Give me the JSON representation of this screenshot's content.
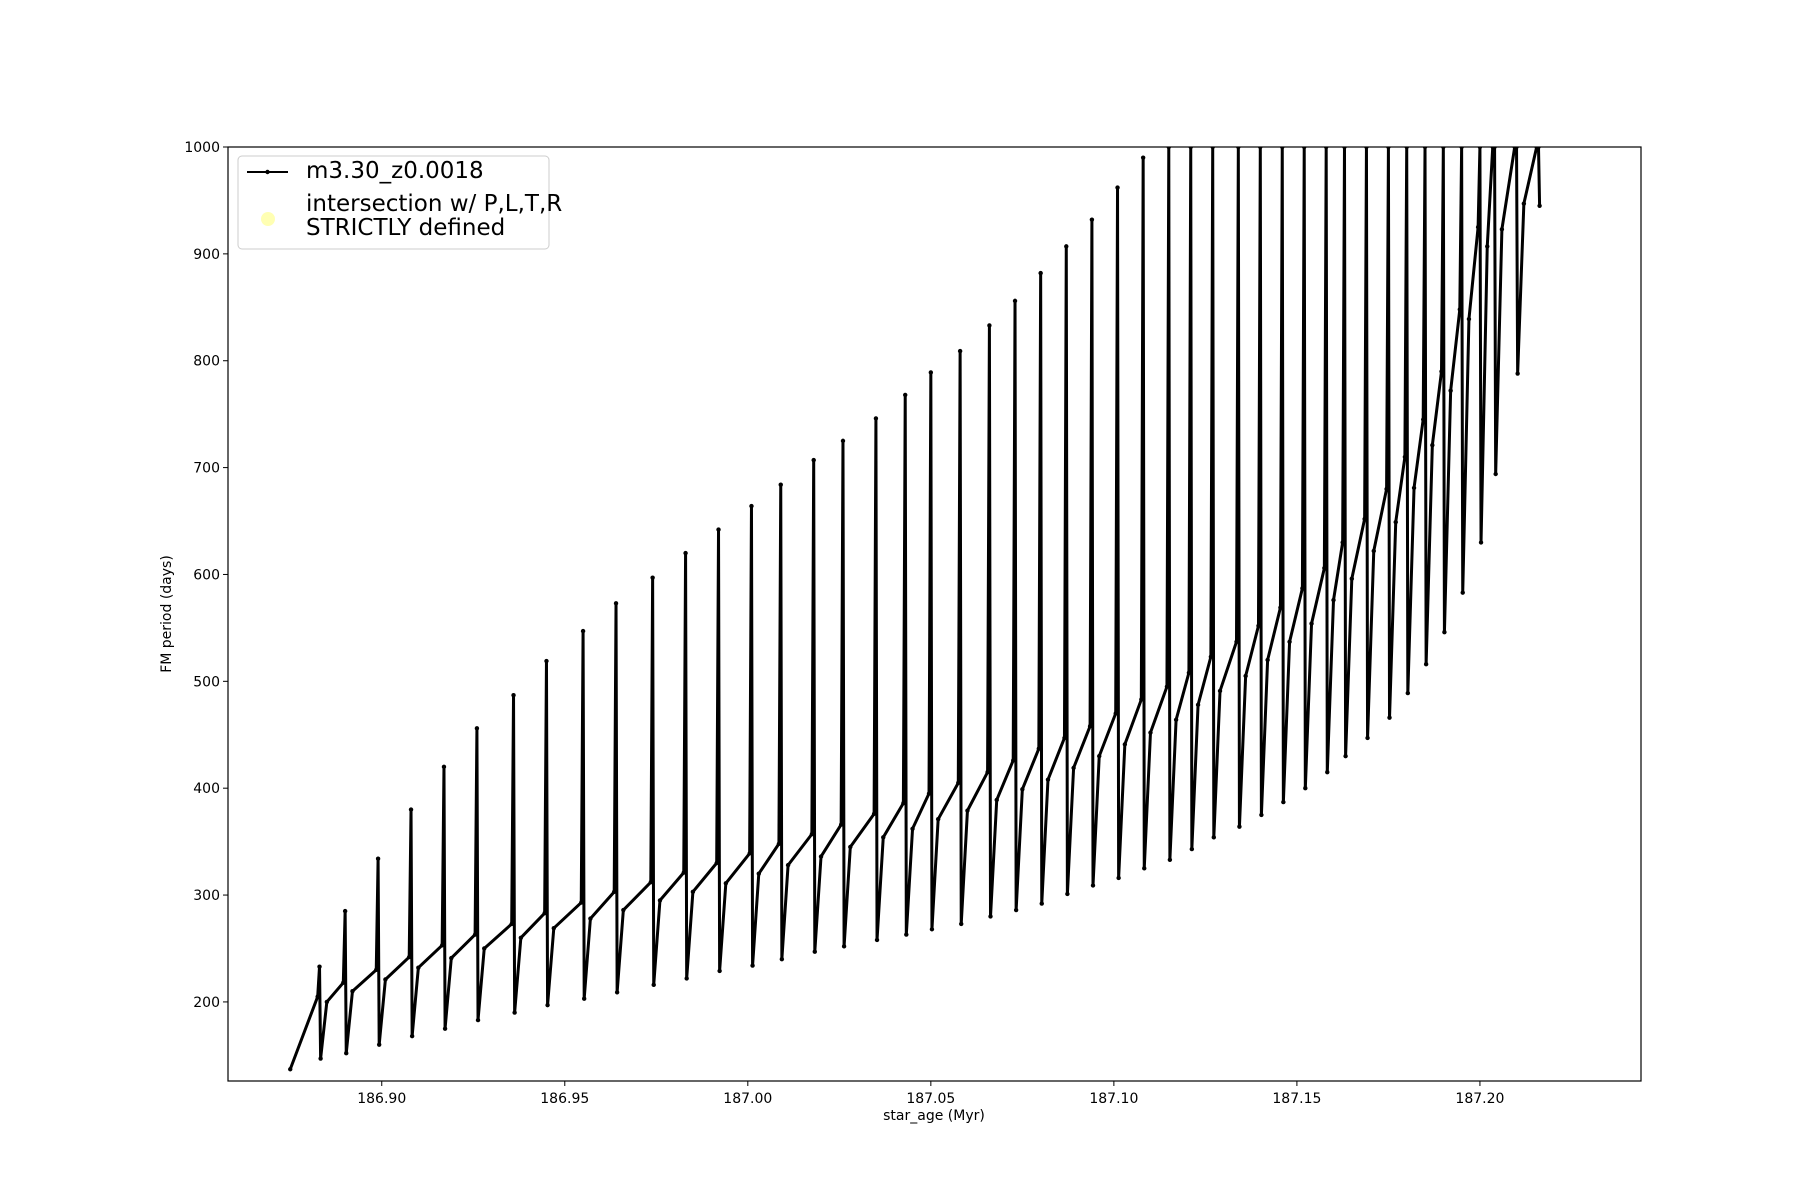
{
  "chart_data": {
    "type": "line",
    "xlabel": "star_age (Myr)",
    "ylabel": "FM period (days)",
    "xlim": [
      186.858,
      187.244
    ],
    "ylim": [
      126,
      1000
    ],
    "xticks": [
      {
        "value": 186.9,
        "label": "186.90"
      },
      186.95,
      {
        "value": 187.0,
        "label": "187.00"
      },
      187.05,
      {
        "value": 187.1,
        "label": "187.10"
      },
      187.15,
      {
        "value": 187.2,
        "label": "187.20"
      }
    ],
    "yticks": [
      200,
      300,
      400,
      500,
      600,
      700,
      800,
      900,
      1000
    ],
    "grid": false,
    "legend": "upper left",
    "series": [
      {
        "name": "m3.30_z0.0018",
        "color": "#000000",
        "x": [
          186.875,
          186.8825,
          186.883,
          186.8833,
          186.885,
          186.8895,
          186.89,
          186.8903,
          186.892,
          186.8985,
          186.899,
          186.8993,
          186.901,
          186.9075,
          186.908,
          186.9083,
          186.91,
          186.9165,
          186.917,
          186.9173,
          186.919,
          186.9255,
          186.926,
          186.9263,
          186.928,
          186.9355,
          186.936,
          186.9363,
          186.938,
          186.9445,
          186.945,
          186.9453,
          186.947,
          186.9545,
          186.955,
          186.9553,
          186.957,
          186.9635,
          186.964,
          186.9643,
          186.966,
          186.9735,
          186.974,
          186.9743,
          186.976,
          186.9825,
          186.983,
          186.9833,
          186.985,
          186.9915,
          186.992,
          186.9923,
          186.994,
          187.0005,
          187.001,
          187.0013,
          187.003,
          187.0085,
          187.009,
          187.0093,
          187.011,
          187.0175,
          187.018,
          187.0183,
          187.02,
          187.0255,
          187.026,
          187.0263,
          187.028,
          187.0345,
          187.035,
          187.0353,
          187.037,
          187.0425,
          187.043,
          187.0433,
          187.045,
          187.0495,
          187.05,
          187.0503,
          187.052,
          187.0575,
          187.058,
          187.0583,
          187.06,
          187.0655,
          187.066,
          187.0663,
          187.068,
          187.0725,
          187.073,
          187.0733,
          187.075,
          187.0795,
          187.08,
          187.0803,
          187.082,
          187.0865,
          187.087,
          187.0873,
          187.089,
          187.0935,
          187.094,
          187.0943,
          187.096,
          187.1005,
          187.101,
          187.1013,
          187.103,
          187.1075,
          187.108,
          187.1083,
          187.11,
          187.1145,
          187.115,
          187.1153,
          187.117,
          187.1205,
          187.121,
          187.1213,
          187.123,
          187.1265,
          187.127,
          187.1273,
          187.129,
          187.1335,
          187.134,
          187.1343,
          187.136,
          187.1395,
          187.14,
          187.1403,
          187.142,
          187.1455,
          187.146,
          187.1463,
          187.148,
          187.1515,
          187.152,
          187.1523,
          187.154,
          187.1575,
          187.158,
          187.1583,
          187.16,
          187.1625,
          187.163,
          187.1633,
          187.165,
          187.1685,
          187.169,
          187.1693,
          187.171,
          187.1745,
          187.175,
          187.1753,
          187.177,
          187.1795,
          187.18,
          187.1803,
          187.182,
          187.1845,
          187.185,
          187.1853,
          187.187,
          187.1895,
          187.19,
          187.1903,
          187.192,
          187.1945,
          187.195,
          187.1953,
          187.197,
          187.1995,
          187.2,
          187.2003,
          187.202,
          187.2035,
          187.204,
          187.2043,
          187.206,
          187.2095,
          187.21,
          187.2103,
          187.212,
          187.2155,
          187.216,
          187.2163
        ],
        "values": [
          137,
          205,
          233,
          147,
          200,
          218,
          285,
          152,
          210,
          230,
          334,
          160,
          221,
          242,
          380,
          168,
          232,
          253,
          420,
          175,
          241,
          263,
          456,
          183,
          250,
          273,
          487,
          190,
          260,
          283,
          519,
          197,
          269,
          293,
          547,
          203,
          278,
          303,
          573,
          209,
          286,
          312,
          597,
          216,
          295,
          321,
          620,
          222,
          303,
          330,
          642,
          229,
          311,
          339,
          664,
          234,
          320,
          348,
          684,
          240,
          328,
          357,
          707,
          247,
          336,
          366,
          725,
          252,
          345,
          376,
          746,
          258,
          354,
          386,
          768,
          263,
          362,
          395,
          789,
          268,
          371,
          405,
          809,
          273,
          379,
          415,
          833,
          280,
          389,
          426,
          856,
          286,
          399,
          437,
          882,
          292,
          408,
          447,
          907,
          301,
          419,
          458,
          932,
          309,
          430,
          470,
          962,
          316,
          441,
          483,
          990,
          325,
          452,
          495,
          1000,
          333,
          464,
          508,
          1000,
          343,
          478,
          523,
          1000,
          354,
          491,
          537,
          1000,
          364,
          505,
          552,
          1000,
          375,
          520,
          569,
          1000,
          387,
          537,
          587,
          1000,
          400,
          554,
          606,
          1000,
          415,
          576,
          630,
          1000,
          430,
          596,
          652,
          1000,
          447,
          622,
          680,
          1000,
          466,
          649,
          710,
          1000,
          489,
          681,
          745,
          1000,
          516,
          721,
          790,
          1000,
          546,
          772,
          848,
          1000,
          583,
          839,
          925,
          1000,
          630,
          907,
          1000,
          1000,
          694,
          923,
          1000,
          1000,
          788,
          947,
          1000,
          1000,
          945
        ]
      },
      {
        "name": "intersection w/ P,L,T,R\nSTRICTLY defined",
        "color": "#ffffb3",
        "x": [],
        "values": []
      }
    ]
  }
}
